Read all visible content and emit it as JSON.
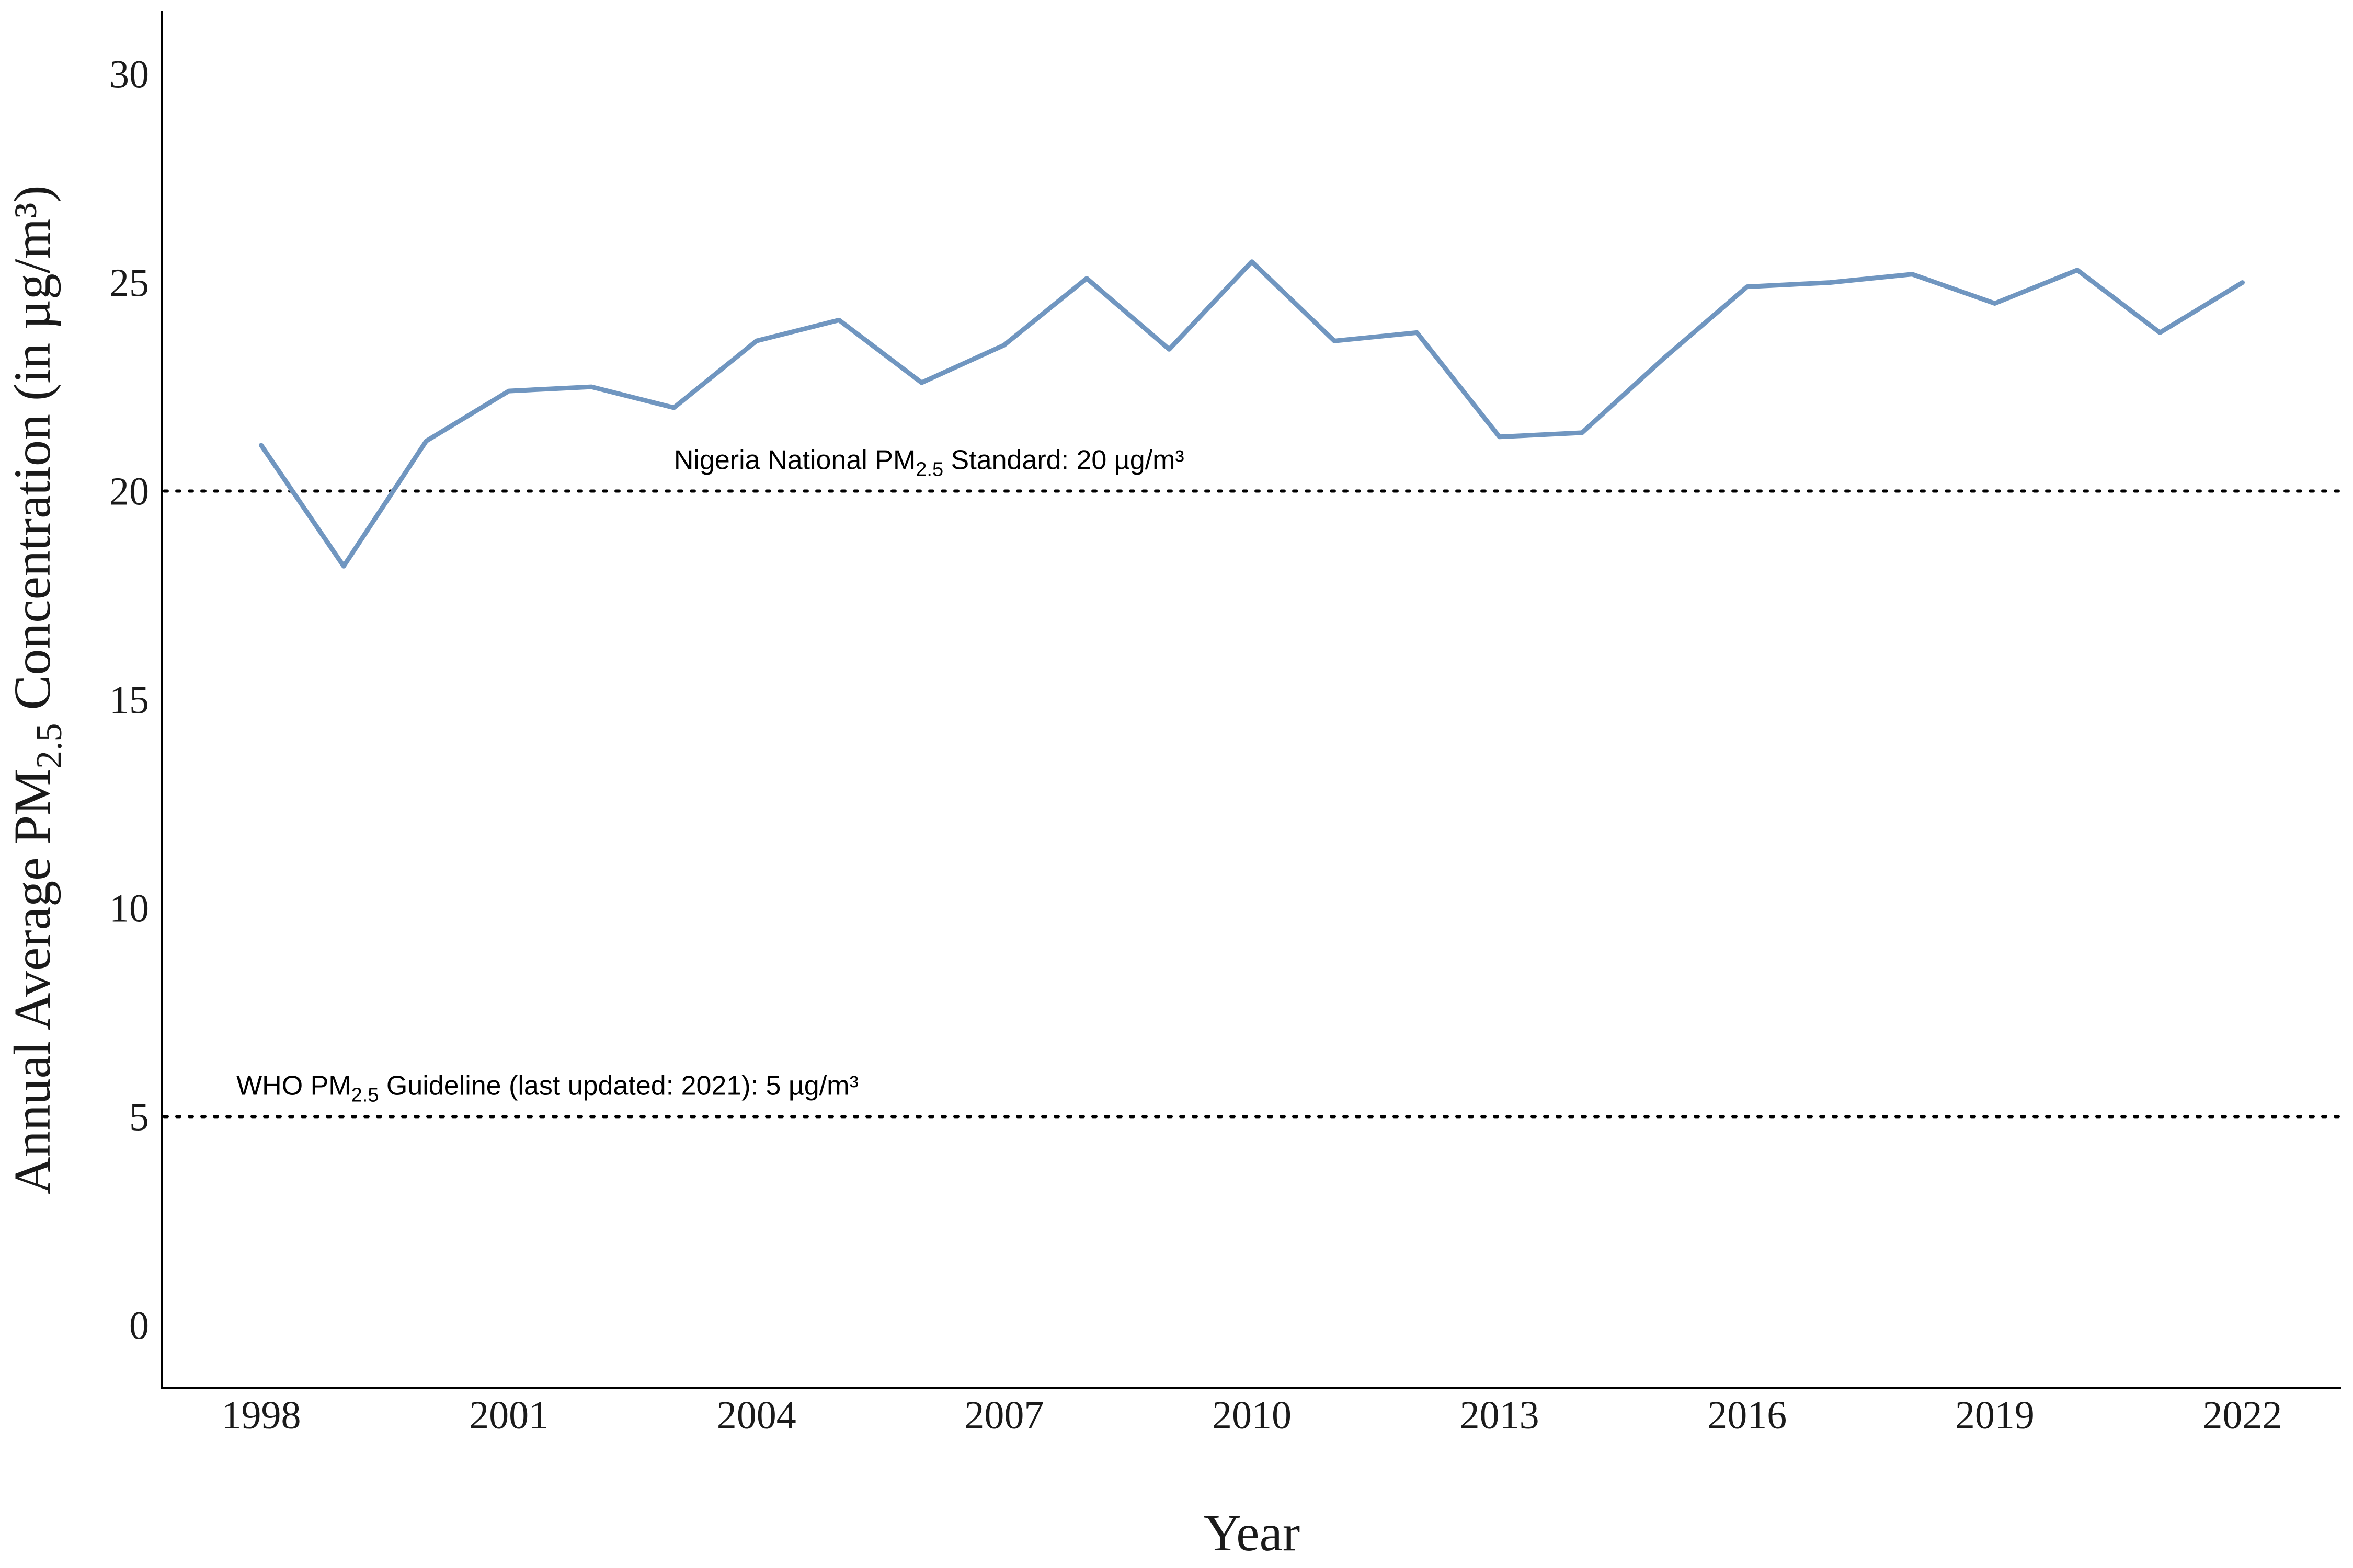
{
  "chart_data": {
    "type": "line",
    "xlabel": "Year",
    "ylabel_parts": [
      "Annual Average PM",
      "2.5",
      " Concentration (in µg/m³)"
    ],
    "ylim": [
      -1.5,
      31.5
    ],
    "yticks": [
      0,
      5,
      10,
      15,
      20,
      25,
      30
    ],
    "xlim": [
      1996.8,
      2023.2
    ],
    "xticks": [
      1998,
      2001,
      2004,
      2007,
      2010,
      2013,
      2016,
      2019,
      2022
    ],
    "grid": false,
    "series": [
      {
        "x": [
          1998,
          1999,
          2000,
          2001,
          2002,
          2003,
          2004,
          2005,
          2006,
          2007,
          2008,
          2009,
          2010,
          2011,
          2012,
          2013,
          2014,
          2015,
          2016,
          2017,
          2018,
          2019,
          2020,
          2021,
          2022
        ],
        "values": [
          21.1,
          18.2,
          21.2,
          22.4,
          22.5,
          22.0,
          23.6,
          24.1,
          22.6,
          23.5,
          25.1,
          23.4,
          25.5,
          23.6,
          23.8,
          21.3,
          21.4,
          23.2,
          24.9,
          25.0,
          25.2,
          24.5,
          25.3,
          23.8,
          25.0
        ],
        "color": "#7096c0"
      }
    ],
    "reference_lines": [
      {
        "y": 20,
        "label_parts": [
          "Nigeria National PM",
          "2.5",
          " Standard: 20 µg/m³"
        ],
        "label_x": 2003
      },
      {
        "y": 5,
        "label_parts": [
          "WHO PM",
          "2.5",
          " Guideline (last updated: 2021): 5 µg/m³"
        ],
        "label_x": 1997.7
      }
    ]
  }
}
